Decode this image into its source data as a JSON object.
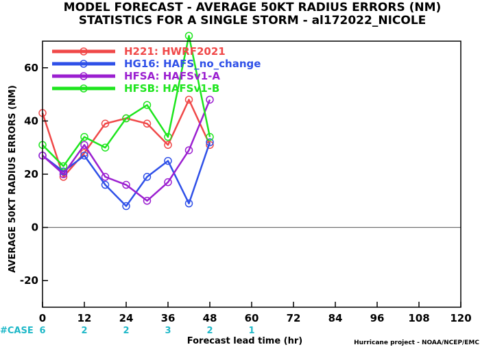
{
  "chart_data": {
    "type": "line",
    "title_line1": "MODEL FORECAST - AVERAGE 50KT RADIUS ERRORS (NM)",
    "title_line2": "STATISTICS FOR A SINGLE STORM - al172022_NICOLE",
    "xlabel": "Forecast lead time (hr)",
    "ylabel": "AVERAGE 50KT RADIUS ERRORS (NM)",
    "xlim": [
      0,
      120
    ],
    "ylim": [
      -30,
      70
    ],
    "xticks": [
      "0",
      "12",
      "24",
      "36",
      "48",
      "60",
      "72",
      "84",
      "96",
      "108",
      "120"
    ],
    "yticks": [
      "-20",
      "0",
      "20",
      "40",
      "60"
    ],
    "legend_position": "top-left",
    "case_label": "#CASE",
    "cases": [
      {
        "x": 0,
        "n": "6"
      },
      {
        "x": 12,
        "n": "2"
      },
      {
        "x": 24,
        "n": "2"
      },
      {
        "x": 36,
        "n": "3"
      },
      {
        "x": 48,
        "n": "2"
      },
      {
        "x": 60,
        "n": "1"
      }
    ],
    "credit": "Hurricane project - NOAA/NCEP/EMC",
    "series": [
      {
        "name": "H221: HWRF2021",
        "color": "#f04848",
        "x": [
          0,
          6,
          12,
          18,
          24,
          30,
          36,
          42,
          48
        ],
        "y": [
          43,
          19,
          28,
          39,
          41,
          39,
          31,
          48,
          31
        ]
      },
      {
        "name": "HG16: HAFS_no_change",
        "color": "#2f50e8",
        "x": [
          0,
          6,
          12,
          18,
          24,
          30,
          36,
          42,
          48
        ],
        "y": [
          27,
          21,
          27,
          16,
          8,
          19,
          25,
          9,
          32
        ]
      },
      {
        "name": "HFSA: HAFSv1-A",
        "color": "#9b1fd0",
        "x": [
          0,
          6,
          12,
          18,
          24,
          30,
          36,
          42,
          48
        ],
        "y": [
          27,
          20,
          31,
          19,
          16,
          10,
          17,
          29,
          48
        ]
      },
      {
        "name": "HFSB: HAFSv1-B",
        "color": "#1ee51e",
        "x": [
          0,
          6,
          12,
          18,
          24,
          30,
          36,
          42,
          48
        ],
        "y": [
          31,
          23,
          34,
          30,
          41,
          46,
          34,
          72,
          34
        ]
      }
    ]
  }
}
